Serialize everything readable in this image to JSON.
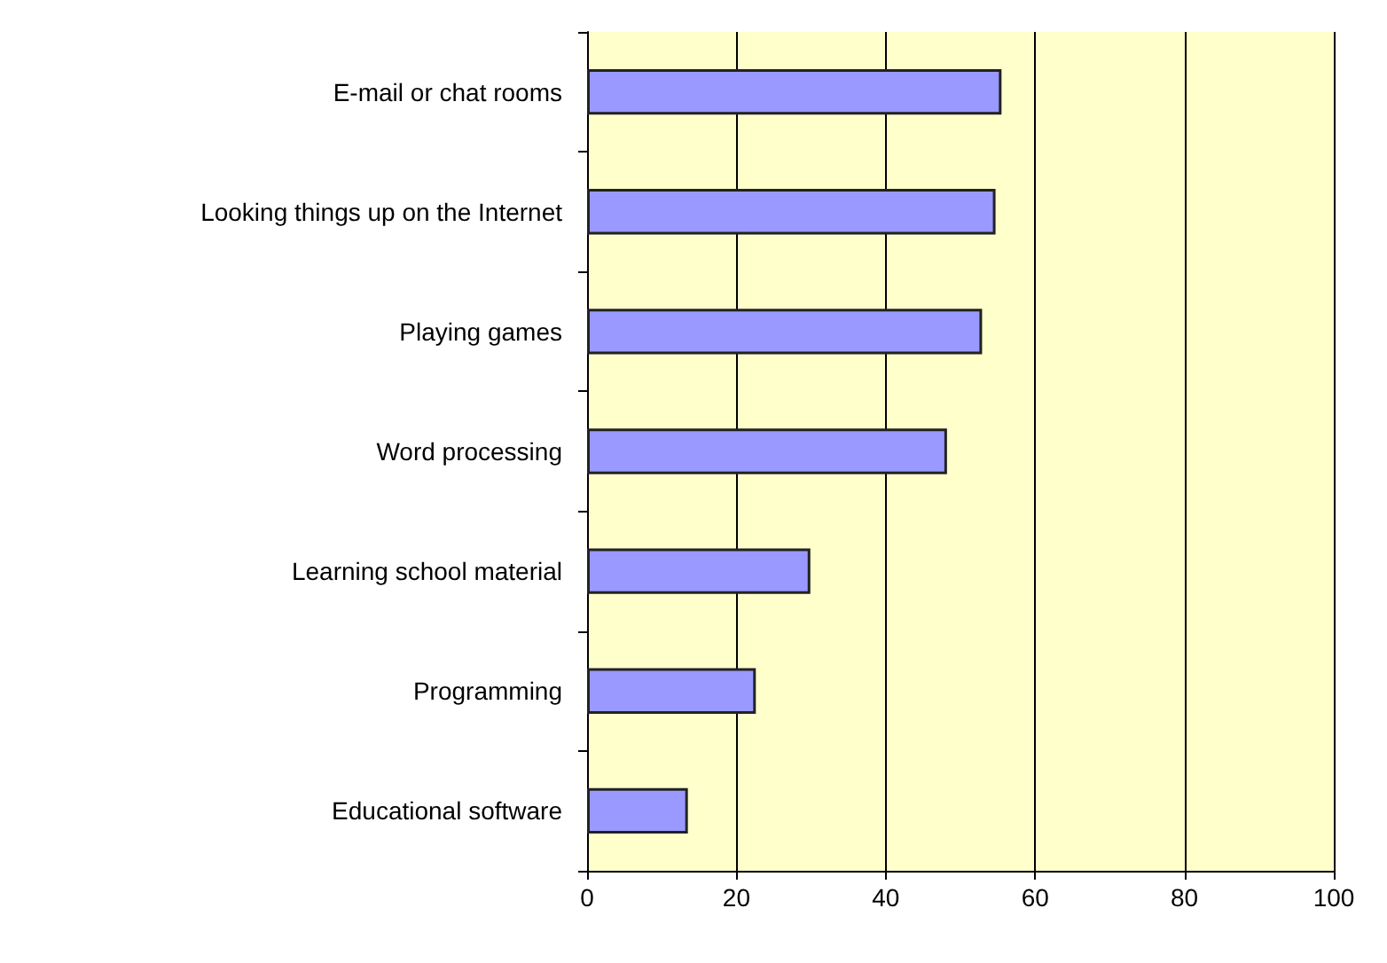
{
  "chart_data": {
    "type": "bar",
    "orientation": "horizontal",
    "categories": [
      "E-mail or chat rooms",
      "Looking things up on the Internet",
      "Playing games",
      "Word processing",
      "Learning school material",
      "Programming",
      "Educational software"
    ],
    "values": [
      55.5,
      54.7,
      52.9,
      48.2,
      29.9,
      22.6,
      13.5
    ],
    "color": "#9999ff",
    "xlim": [
      0,
      100
    ],
    "xticks": [
      0,
      20,
      40,
      60,
      80,
      100
    ],
    "grid": "x"
  }
}
